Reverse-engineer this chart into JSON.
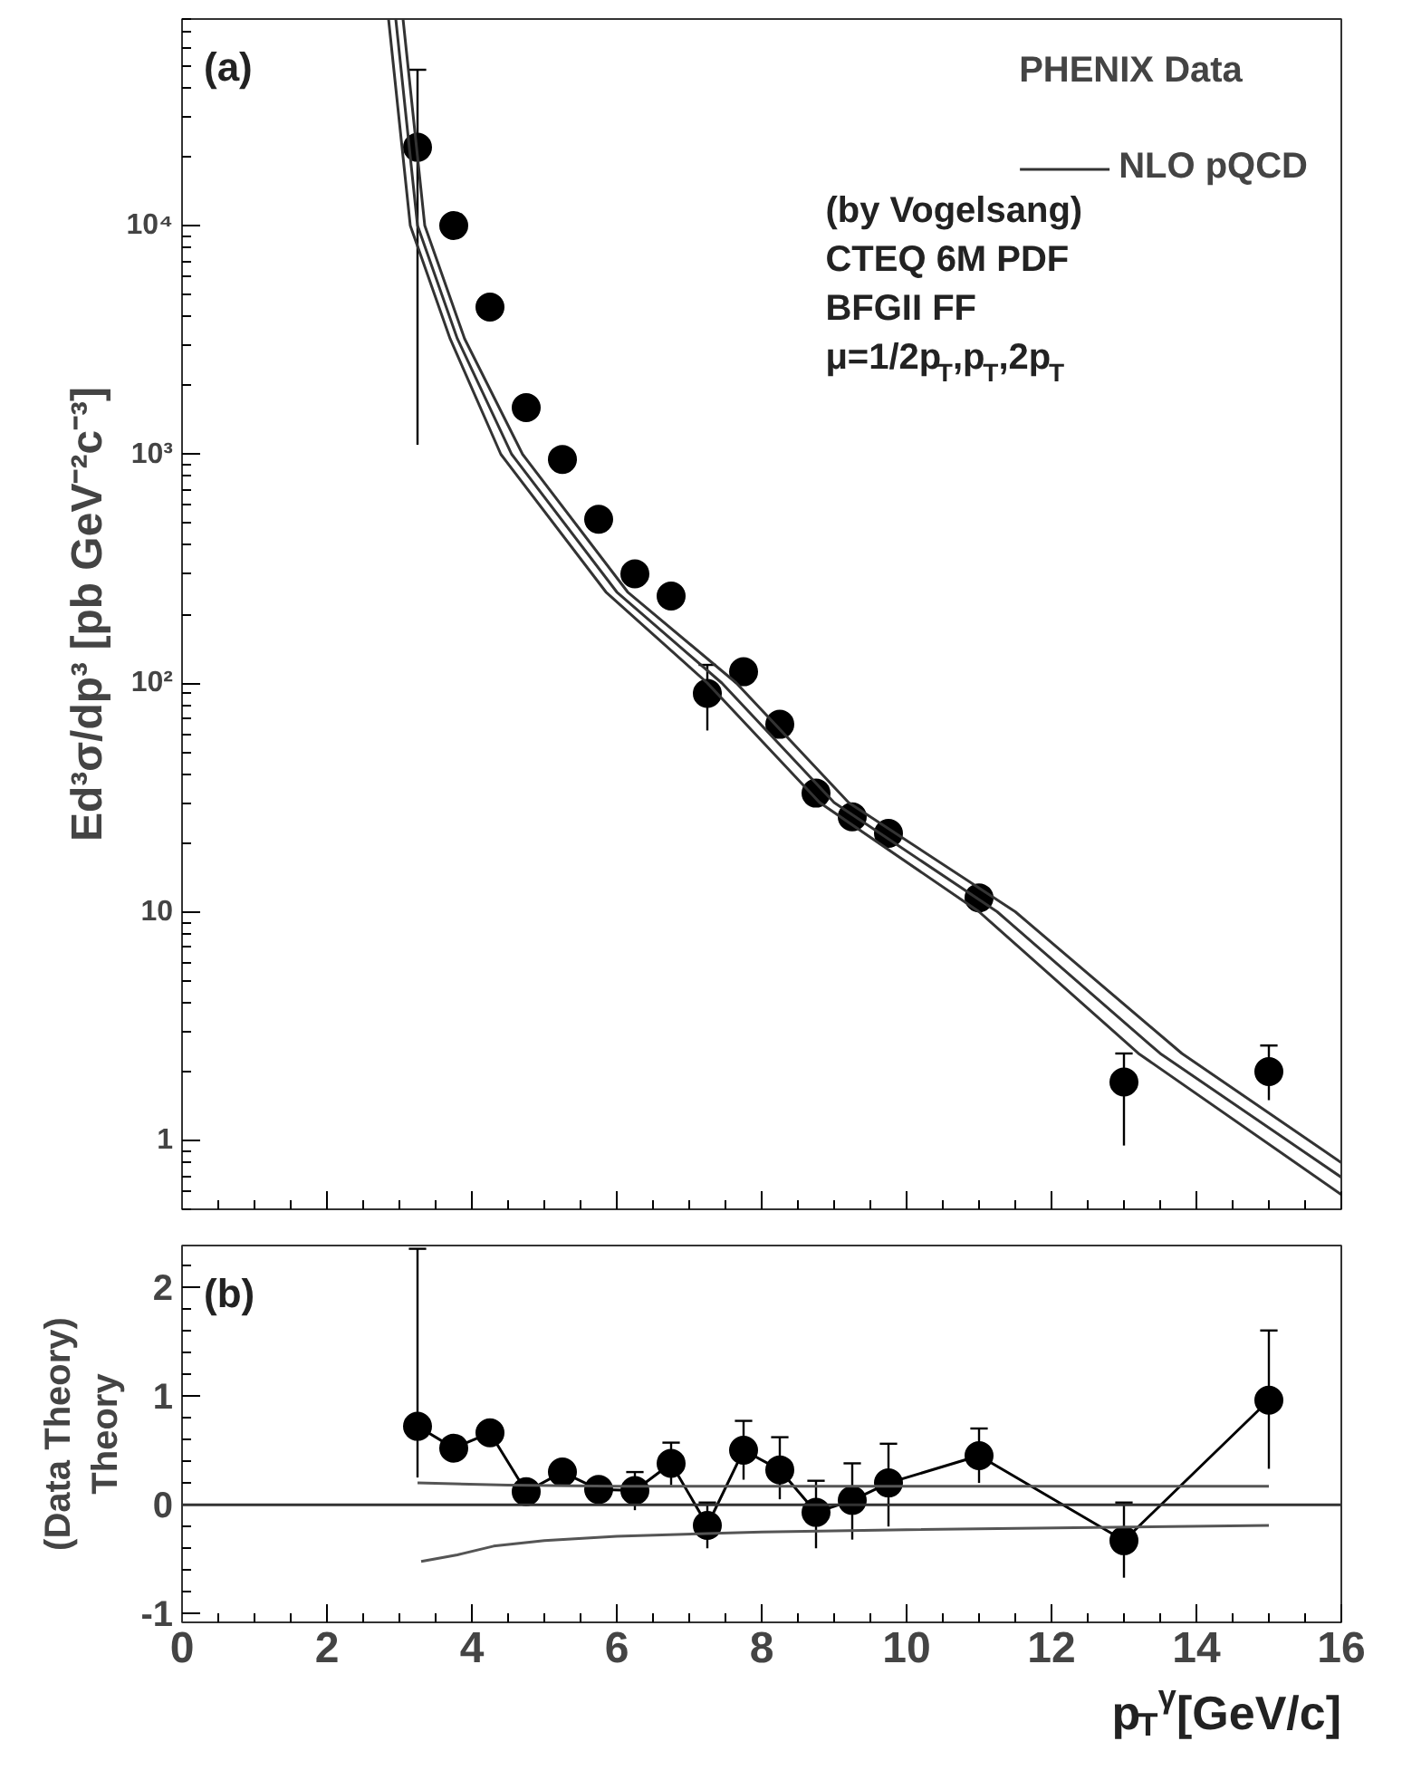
{
  "chart_data": [
    {
      "type": "scatter",
      "legend_title": "PHENIX Data",
      "ylabel": "Ed³σ/dp³ [pb GeV⁻²c⁻³]",
      "annotations": [
        "(a)",
        "(by Vogelsang)",
        "CTEQ 6M PDF",
        "BFGII FF",
        "μ=1/2p$_{T}$,p$_{T}$,2p$_{T}$"
      ],
      "log": "y",
      "grid": false,
      "legend": "top right",
      "tick_labels": "y",
      "xlim": [
        0,
        16
      ],
      "xticks": [
        {
          "value": 0,
          "label": null
        },
        {
          "value": 2,
          "label": null
        },
        {
          "value": 4,
          "label": null
        },
        {
          "value": 6,
          "label": null
        },
        {
          "value": 8,
          "label": null
        },
        {
          "value": 10,
          "label": null
        },
        {
          "value": 12,
          "label": null
        },
        {
          "value": 14,
          "label": null
        },
        {
          "value": 16,
          "label": null
        }
      ],
      "ylim": [
        0.5,
        80000
      ],
      "yticks": [
        1,
        10,
        {
          "value": 100,
          "label": "10²"
        },
        {
          "value": 1000,
          "label": "10³"
        },
        {
          "value": 10000,
          "label": "10⁴"
        }
      ],
      "series": [
        {
          "marker": "circle",
          "color": "#000000",
          "x": [
            3.25,
            3.75,
            4.25,
            4.75,
            5.25,
            5.75,
            6.25,
            6.75,
            7.25,
            7.75,
            8.25,
            8.75,
            9.25,
            9.75,
            11,
            13,
            15
          ],
          "values": [
            22000,
            10000,
            4400,
            1600,
            950,
            520,
            300,
            240,
            90,
            112,
            66,
            33,
            26,
            22,
            11.5,
            1.8,
            2.0
          ],
          "errors": [
            [
              1100,
              48000
            ],
            null,
            null,
            null,
            null,
            null,
            null,
            null,
            [
              62,
              120
            ],
            null,
            null,
            null,
            null,
            null,
            null,
            [
              0.95,
              2.4
            ],
            [
              1.5,
              2.6
            ]
          ]
        },
        {
          "type": "line",
          "line_style": "solid",
          "name": "NLO pQCD",
          "color": "#333333",
          "x": [
            2.95,
            3.25,
            3.8,
            4.55,
            6,
            7.45,
            9,
            11.25,
            13.5,
            16
          ],
          "values": [
            80000,
            10000,
            3200,
            1000,
            250,
            100,
            30,
            10,
            2.4,
            0.69
          ]
        },
        {
          "type": "line",
          "line_style": "solid",
          "color": "#333333",
          "x": [
            3.05,
            3.35,
            3.9,
            4.7,
            6.15,
            7.65,
            9.2,
            11.5,
            13.8,
            16
          ],
          "values": [
            80000,
            10000,
            3200,
            1000,
            250,
            100,
            30,
            10,
            2.4,
            0.8
          ]
        },
        {
          "type": "line",
          "line_style": "solid",
          "color": "#333333",
          "x": [
            2.85,
            3.15,
            3.7,
            4.4,
            5.85,
            7.25,
            8.8,
            11.0,
            13.2,
            16
          ],
          "values": [
            80000,
            10000,
            3200,
            1000,
            250,
            100,
            30,
            10,
            2.4,
            0.58
          ]
        }
      ]
    },
    {
      "type": "line",
      "xlabel": "p$_{T}$$^{γ}$[GeV/c]",
      "ylabel": "(Data Theory)\nTheory",
      "annotations": [
        "(b)"
      ],
      "grid": false,
      "xlim": [
        0,
        16
      ],
      "xticks": [
        0,
        2,
        4,
        6,
        8,
        10,
        12,
        14,
        16
      ],
      "ylim": [
        -1.08,
        2.38
      ],
      "yticks": [
        -1,
        0,
        1,
        2
      ],
      "ref_lines": [
        {
          "axis": "y",
          "value": 0,
          "color": "#333333"
        }
      ],
      "series": [
        {
          "marker": "circle",
          "line_style": "solid",
          "color": "#000000",
          "x": [
            3.25,
            3.75,
            4.25,
            4.75,
            5.25,
            5.75,
            6.25,
            6.75,
            7.25,
            7.75,
            8.25,
            8.75,
            9.25,
            9.75,
            11,
            13,
            15
          ],
          "values": [
            0.72,
            0.52,
            0.66,
            0.12,
            0.3,
            0.14,
            0.13,
            0.38,
            -0.19,
            0.5,
            0.32,
            -0.07,
            0.04,
            0.2,
            0.45,
            -0.33,
            0.96
          ],
          "errors": [
            [
              0.25,
              2.35
            ],
            null,
            null,
            null,
            null,
            null,
            [
              -0.05,
              0.3
            ],
            [
              0.18,
              0.57
            ],
            [
              -0.4,
              0.02
            ],
            [
              0.23,
              0.77
            ],
            [
              0.05,
              0.62
            ],
            [
              -0.4,
              0.22
            ],
            [
              -0.32,
              0.38
            ],
            [
              -0.2,
              0.56
            ],
            [
              0.2,
              0.7
            ],
            [
              -0.67,
              0.02
            ],
            [
              0.33,
              1.6
            ]
          ]
        },
        {
          "type": "line",
          "marker": "none",
          "line_style": "solid",
          "color": "#555555",
          "x": [
            3.25,
            4.5,
            6,
            8,
            10,
            15
          ],
          "values": [
            0.2,
            0.18,
            0.17,
            0.17,
            0.17,
            0.17
          ]
        },
        {
          "type": "line",
          "marker": "none",
          "line_style": "solid",
          "color": "#555555",
          "x": [
            3.3,
            3.8,
            4.3,
            5,
            6,
            8,
            10,
            15
          ],
          "values": [
            -0.52,
            -0.46,
            -0.38,
            -0.33,
            -0.29,
            -0.25,
            -0.23,
            -0.19
          ]
        }
      ]
    }
  ]
}
